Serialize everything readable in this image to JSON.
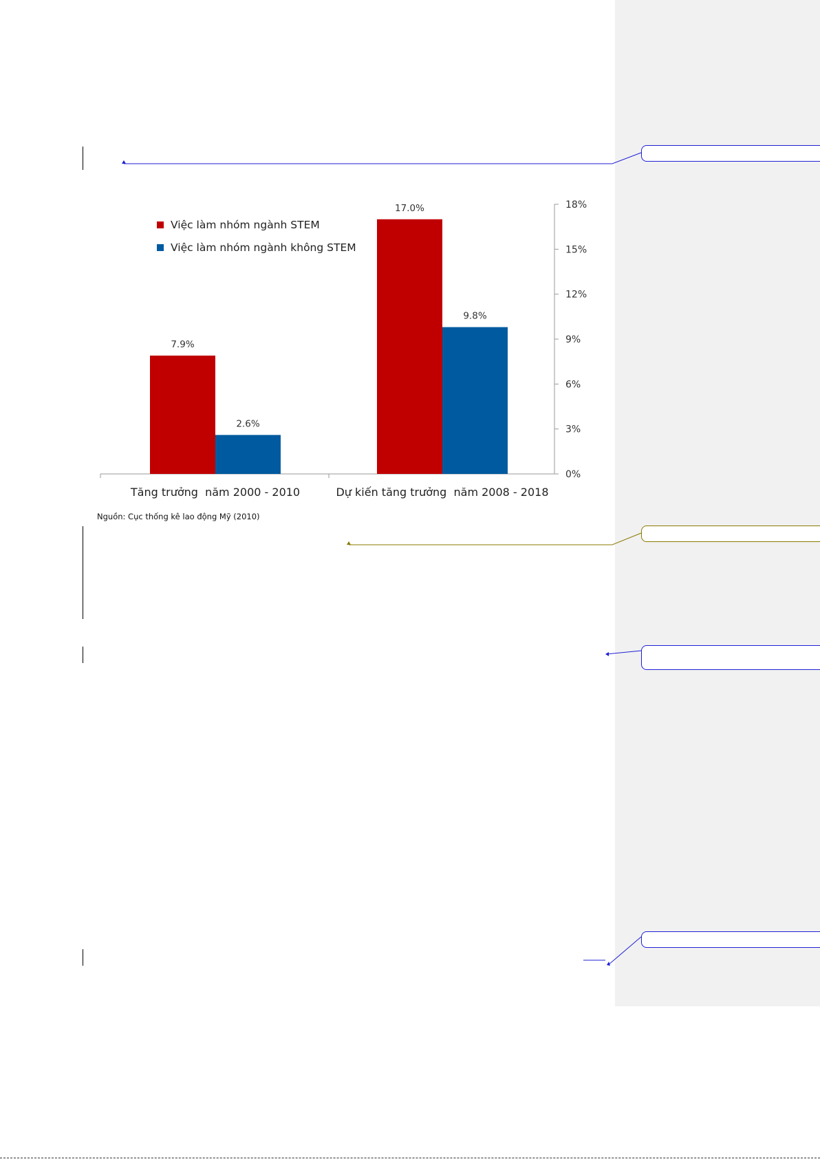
{
  "colors": {
    "stem": "#c00000",
    "non_stem": "#005aa0",
    "comment_pane": "#f1f1f1",
    "comment_link_blue": "#1f1fd6",
    "comment_link_olive": "#8a7a00"
  },
  "chart_data": {
    "type": "bar",
    "categories": [
      "Tăng trưởng  năm 2000 - 2010",
      "Dự kiến tăng trưởng  năm 2008 - 2018"
    ],
    "series": [
      {
        "name": "Việc làm nhóm ngành STEM",
        "values": [
          7.9,
          17.0
        ],
        "labels": [
          "7.9%",
          "17.0%"
        ]
      },
      {
        "name": "Việc làm nhóm ngành không STEM",
        "values": [
          2.6,
          9.8
        ],
        "labels": [
          "2.6%",
          "9.8%"
        ]
      }
    ],
    "ylim": [
      0,
      18
    ],
    "yticks": [
      "0%",
      "3%",
      "6%",
      "9%",
      "12%",
      "15%",
      "18%"
    ],
    "y_axis_side": "right",
    "legend_position": "top-left",
    "grid": false
  },
  "source_note": "Nguồn: Cục thống kê lao động Mỹ (2010)"
}
